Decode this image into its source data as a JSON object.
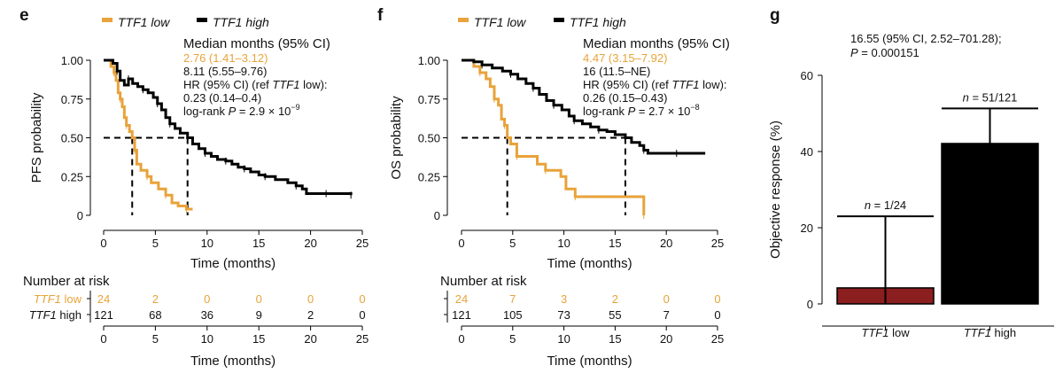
{
  "colors": {
    "low": "#E8A33A",
    "high": "#000000",
    "bar_low": "#8B1E1E",
    "bar_high": "#000000"
  },
  "chart_data": [
    {
      "type": "line",
      "panel": "e",
      "xlabel": "Time (months)",
      "ylabel": "PFS probability",
      "xlim": [
        0,
        25
      ],
      "ylim": [
        0,
        1
      ],
      "xticks": [
        "0",
        "5",
        "10",
        "15",
        "20",
        "25"
      ],
      "yticks": [
        "0",
        "0.25",
        "0.50",
        "0.75",
        "1.00"
      ],
      "legend": [
        {
          "name": "TTF1",
          "suffix": " low",
          "series": "low"
        },
        {
          "name": "TTF1",
          "suffix": " high",
          "series": "high"
        }
      ],
      "median_header": "Median months (95% CI)",
      "median_low": "2.76 (1.41–3.12)",
      "median_high": "8.11 (5.55–9.76)",
      "hr_prefix": "HR (95% CI) (ref ",
      "hr_ital": "TTF1",
      "hr_suffix": " low):",
      "hr_value": "0.23 (0.14–0.4)",
      "logrank_prefix": "log-rank ",
      "logrank_p": "P",
      "logrank_value": " = 2.9 × 10",
      "logrank_exp": "−9",
      "medians": [
        2.76,
        8.11
      ],
      "series": [
        {
          "name": "TTF1 low",
          "color_key": "low",
          "points": [
            [
              0,
              1
            ],
            [
              0.4,
              1
            ],
            [
              0.7,
              0.96
            ],
            [
              1,
              0.92
            ],
            [
              1.2,
              0.87
            ],
            [
              1.4,
              0.79
            ],
            [
              1.6,
              0.75
            ],
            [
              1.8,
              0.7
            ],
            [
              2,
              0.63
            ],
            [
              2.2,
              0.58
            ],
            [
              2.5,
              0.54
            ],
            [
              2.76,
              0.5
            ],
            [
              3,
              0.42
            ],
            [
              3.2,
              0.33
            ],
            [
              3.6,
              0.29
            ],
            [
              4.2,
              0.25
            ],
            [
              4.6,
              0.21
            ],
            [
              5.3,
              0.17
            ],
            [
              6,
              0.13
            ],
            [
              6.6,
              0.08
            ],
            [
              7.2,
              0.06
            ],
            [
              8,
              0.04
            ],
            [
              8.6,
              0.04
            ]
          ]
        },
        {
          "name": "TTF1 high",
          "color_key": "high",
          "points": [
            [
              0,
              1
            ],
            [
              0.5,
              1
            ],
            [
              0.9,
              0.98
            ],
            [
              1.3,
              0.93
            ],
            [
              1.6,
              0.87
            ],
            [
              2,
              0.84
            ],
            [
              2.4,
              0.88
            ],
            [
              2.8,
              0.85
            ],
            [
              3.3,
              0.83
            ],
            [
              3.8,
              0.81
            ],
            [
              4.3,
              0.79
            ],
            [
              4.8,
              0.76
            ],
            [
              5.2,
              0.72
            ],
            [
              5.6,
              0.68
            ],
            [
              6,
              0.63
            ],
            [
              6.4,
              0.59
            ],
            [
              6.9,
              0.56
            ],
            [
              7.4,
              0.53
            ],
            [
              8.11,
              0.5
            ],
            [
              8.6,
              0.46
            ],
            [
              9.2,
              0.43
            ],
            [
              9.8,
              0.4
            ],
            [
              10.4,
              0.38
            ],
            [
              11,
              0.36
            ],
            [
              11.8,
              0.35
            ],
            [
              12.4,
              0.33
            ],
            [
              13,
              0.31
            ],
            [
              13.6,
              0.3
            ],
            [
              14.2,
              0.28
            ],
            [
              15,
              0.26
            ],
            [
              15.6,
              0.25
            ],
            [
              16.6,
              0.23
            ],
            [
              17.8,
              0.21
            ],
            [
              18.6,
              0.19
            ],
            [
              19.2,
              0.17
            ],
            [
              19.6,
              0.14
            ],
            [
              21.5,
              0.14
            ],
            [
              22.3,
              0.14
            ],
            [
              23.5,
              0.14
            ],
            [
              23.9,
              0.13
            ]
          ]
        }
      ],
      "risk": {
        "header": "Number at risk",
        "times": [
          "0",
          "5",
          "10",
          "15",
          "20",
          "25"
        ],
        "rows": [
          {
            "label": "TTF1",
            "label_suffix": " low",
            "color_key": "low",
            "values": [
              "24",
              "2",
              "0",
              "0",
              "0",
              "0"
            ]
          },
          {
            "label": "TTF1",
            "label_suffix": " high",
            "color_key": "high",
            "values": [
              "121",
              "68",
              "36",
              "9",
              "2",
              "0"
            ]
          }
        ]
      }
    },
    {
      "type": "line",
      "panel": "f",
      "xlabel": "Time (months)",
      "ylabel": "OS probability",
      "xlim": [
        0,
        25
      ],
      "ylim": [
        0,
        1
      ],
      "xticks": [
        "0",
        "5",
        "10",
        "15",
        "20",
        "25"
      ],
      "yticks": [
        "0",
        "0.25",
        "0.50",
        "0.75",
        "1.00"
      ],
      "legend": [
        {
          "name": "TTF1",
          "suffix": " low",
          "series": "low"
        },
        {
          "name": "TTF1",
          "suffix": " high",
          "series": "high"
        }
      ],
      "median_header": "Median months (95% CI)",
      "median_low": "4.47 (3.15–7.92)",
      "median_high": "16 (11.5–NE)",
      "hr_prefix": "HR (95% CI) (ref ",
      "hr_ital": "TTF1",
      "hr_suffix": " low):",
      "hr_value": "0.26 (0.15–0.43)",
      "logrank_prefix": "log-rank ",
      "logrank_p": "P",
      "logrank_value": " = 2.7 × 10",
      "logrank_exp": "−8",
      "medians": [
        4.47,
        16
      ],
      "series": [
        {
          "name": "TTF1 low",
          "color_key": "low",
          "points": [
            [
              0,
              1
            ],
            [
              0.7,
              1
            ],
            [
              1.2,
              0.96
            ],
            [
              1.8,
              0.92
            ],
            [
              2.4,
              0.88
            ],
            [
              2.8,
              0.83
            ],
            [
              3.2,
              0.75
            ],
            [
              3.6,
              0.71
            ],
            [
              3.9,
              0.62
            ],
            [
              4.2,
              0.58
            ],
            [
              4.47,
              0.5
            ],
            [
              4.8,
              0.46
            ],
            [
              5.4,
              0.38
            ],
            [
              6.9,
              0.38
            ],
            [
              7.4,
              0.33
            ],
            [
              8.2,
              0.29
            ],
            [
              9.7,
              0.25
            ],
            [
              10.2,
              0.17
            ],
            [
              11.1,
              0.12
            ],
            [
              12.5,
              0.12
            ],
            [
              17.6,
              0.12
            ],
            [
              17.8,
              0
            ]
          ]
        },
        {
          "name": "TTF1 high",
          "color_key": "high",
          "points": [
            [
              0,
              1
            ],
            [
              0.5,
              1
            ],
            [
              1.2,
              0.99
            ],
            [
              2,
              0.97
            ],
            [
              3,
              0.95
            ],
            [
              4,
              0.93
            ],
            [
              4.8,
              0.91
            ],
            [
              5.5,
              0.88
            ],
            [
              6.3,
              0.85
            ],
            [
              7,
              0.82
            ],
            [
              7.6,
              0.78
            ],
            [
              8.3,
              0.74
            ],
            [
              9,
              0.71
            ],
            [
              9.8,
              0.68
            ],
            [
              10.5,
              0.64
            ],
            [
              11,
              0.61
            ],
            [
              11.8,
              0.59
            ],
            [
              12.6,
              0.57
            ],
            [
              13.4,
              0.55
            ],
            [
              14.2,
              0.54
            ],
            [
              15,
              0.52
            ],
            [
              16,
              0.5
            ],
            [
              16.6,
              0.47
            ],
            [
              17.4,
              0.45
            ],
            [
              17.8,
              0.42
            ],
            [
              18.2,
              0.4
            ],
            [
              19.5,
              0.4
            ],
            [
              21,
              0.4
            ],
            [
              22.5,
              0.4
            ],
            [
              23.8,
              0.4
            ]
          ]
        }
      ],
      "risk": {
        "header": "Number at risk",
        "times": [
          "0",
          "5",
          "10",
          "15",
          "20",
          "25"
        ],
        "rows": [
          {
            "label": "",
            "label_suffix": "",
            "color_key": "low",
            "values": [
              "24",
              "7",
              "3",
              "2",
              "0",
              "0"
            ]
          },
          {
            "label": "",
            "label_suffix": "",
            "color_key": "high",
            "values": [
              "121",
              "105",
              "73",
              "55",
              "7",
              "0"
            ]
          }
        ]
      }
    },
    {
      "type": "bar",
      "panel": "g",
      "ylabel": "Objective response (%)",
      "ylim": [
        0,
        60
      ],
      "yticks": [
        "0",
        "20",
        "40",
        "60"
      ],
      "annotation_line1": "16.55 (95% CI, 2.52–701.28);",
      "annotation_p": "P",
      "annotation_line2": " = 0.000151",
      "categories": [
        {
          "name": "TTF1",
          "suffix": " low",
          "value": 4.2,
          "ci": [
            0.1,
            23
          ],
          "n_label": "n",
          "n_text": " = 1/24",
          "color_key": "bar_low"
        },
        {
          "name": "TTF1",
          "suffix": " high",
          "value": 42.1,
          "ci": [
            33.5,
            51.3
          ],
          "n_label": "n",
          "n_text": " = 51/121",
          "color_key": "bar_high"
        }
      ]
    }
  ]
}
